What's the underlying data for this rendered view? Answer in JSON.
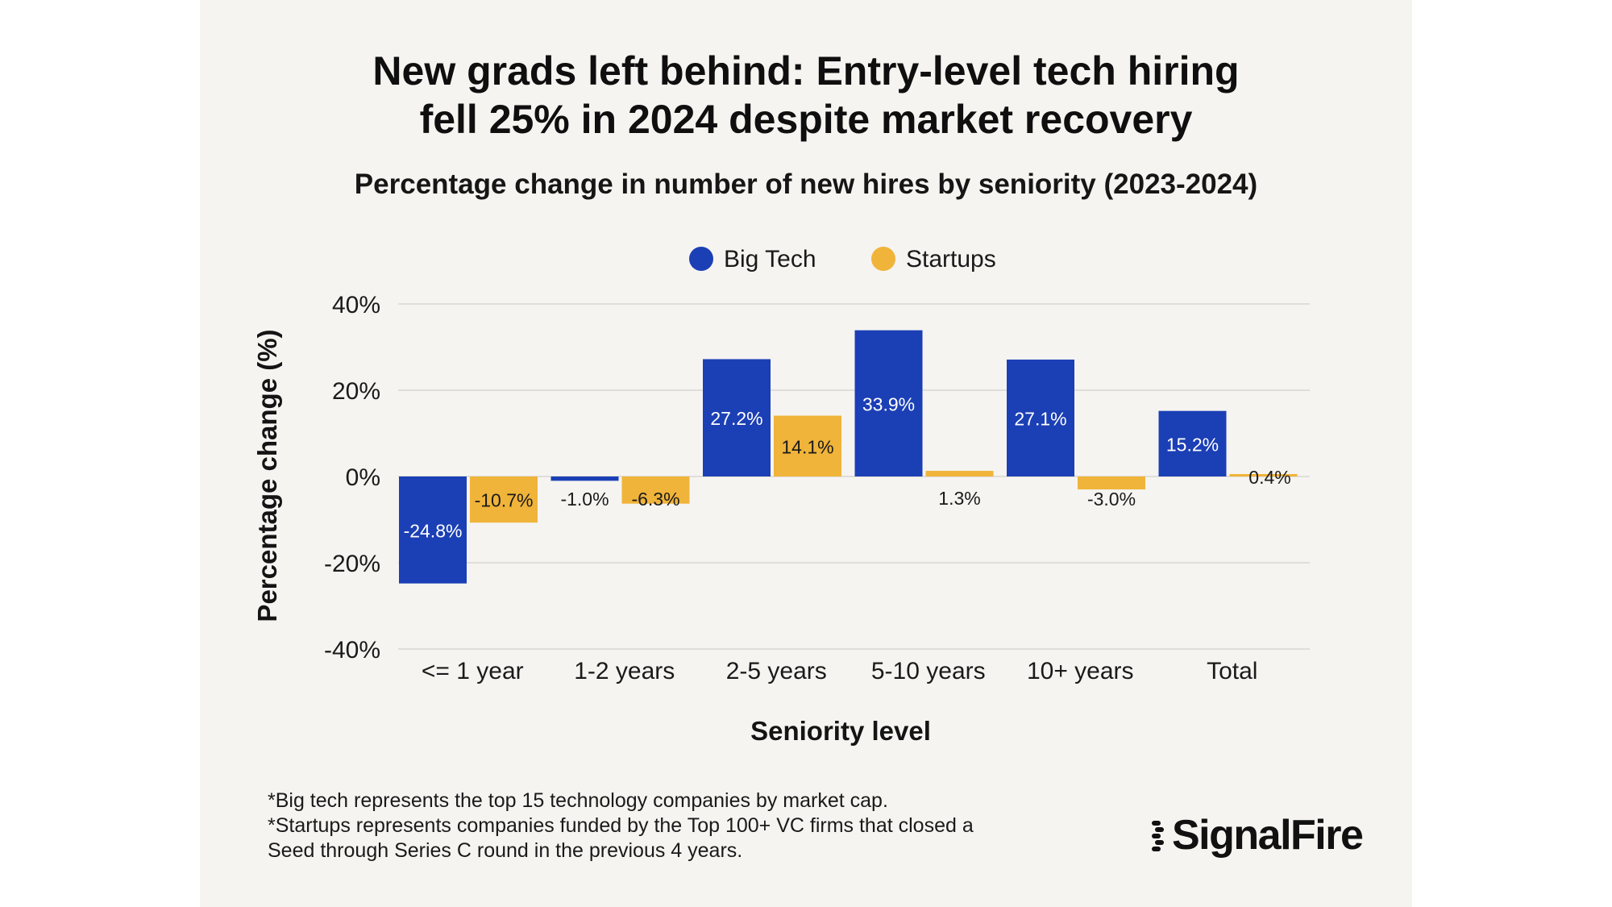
{
  "header": {
    "title_line1": "New grads left behind: Entry-level tech hiring",
    "title_line2": "fell 25% in 2024 despite market recovery",
    "subtitle": "Percentage change in number of new hires by seniority (2023-2024)"
  },
  "chart_data": {
    "type": "bar",
    "categories": [
      "<= 1 year",
      "1-2 years",
      "2-5 years",
      "5-10 years",
      "10+ years",
      "Total"
    ],
    "series": [
      {
        "name": "Big Tech",
        "color": "#1b3fb5",
        "values": [
          -24.8,
          -1.0,
          27.2,
          33.9,
          27.1,
          15.2
        ],
        "labels": [
          "-24.8%",
          "-1.0%",
          "27.2%",
          "33.9%",
          "27.1%",
          "15.2%"
        ]
      },
      {
        "name": "Startups",
        "color": "#f0b43a",
        "values": [
          -10.7,
          -6.3,
          14.1,
          1.3,
          -3.0,
          0.4
        ],
        "labels": [
          "-10.7%",
          "-6.3%",
          "14.1%",
          "1.3%",
          "-3.0%",
          "0.4%"
        ]
      }
    ],
    "ylim": [
      -40,
      40
    ],
    "yticks": [
      40,
      20,
      0,
      -20,
      -40
    ],
    "ytick_labels": [
      "40%",
      "20%",
      "0%",
      "-20%",
      "-40%"
    ],
    "xlabel": "Seniority level",
    "ylabel": "Percentage change (%)",
    "legend_position": "top-center",
    "grid": true
  },
  "footnotes": [
    "*Big tech represents the top 15 technology companies by market cap.",
    "*Startups represents companies funded by the Top 100+ VC firms that closed a",
    "Seed through Series C round in the previous 4 years."
  ],
  "brand": {
    "logo_text": "SignalFire"
  }
}
